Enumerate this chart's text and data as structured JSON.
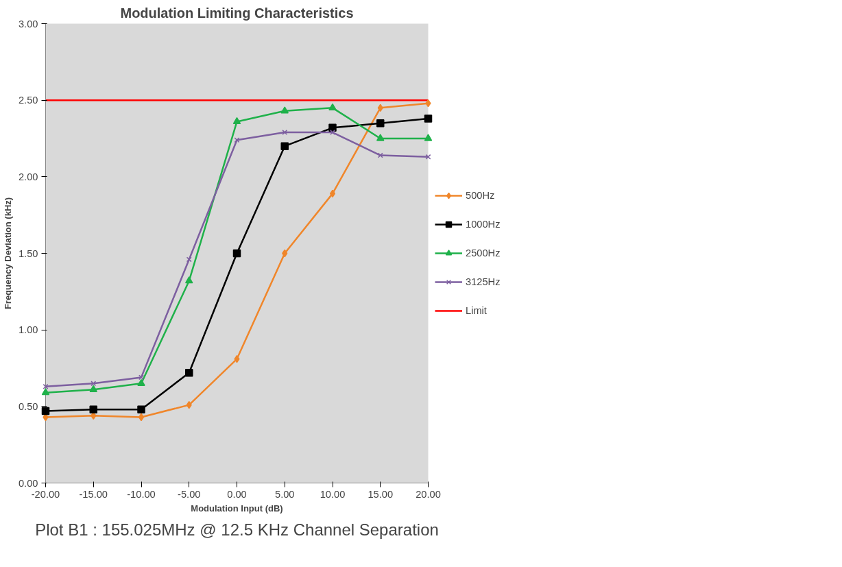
{
  "chart_data": {
    "type": "line",
    "title": "Modulation Limiting Characteristics",
    "xlabel": "Modulation Input (dB)",
    "ylabel": "Frequency Deviation (kHz)",
    "x": [
      -20,
      -15,
      -10,
      -5,
      0,
      5,
      10,
      15,
      20
    ],
    "xlim": [
      -20,
      20
    ],
    "xticks": [
      {
        "value": -20,
        "label": "-20.00"
      },
      {
        "value": -15,
        "label": "-15.00"
      },
      {
        "value": -10,
        "label": "-10.00"
      },
      {
        "value": -5,
        "label": "-5.00"
      },
      {
        "value": 0,
        "label": "0.00"
      },
      {
        "value": 5,
        "label": "5.00"
      },
      {
        "value": 10,
        "label": "10.00"
      },
      {
        "value": 15,
        "label": "15.00"
      },
      {
        "value": 20,
        "label": "20.00"
      }
    ],
    "ylim": [
      0,
      3
    ],
    "yticks": [
      {
        "value": 0,
        "label": "0.00"
      },
      {
        "value": 0.5,
        "label": "0.50"
      },
      {
        "value": 1,
        "label": "1.00"
      },
      {
        "value": 1.5,
        "label": "1.50"
      },
      {
        "value": 2,
        "label": "2.00"
      },
      {
        "value": 2.5,
        "label": "2.50"
      },
      {
        "value": 3,
        "label": "3.00"
      }
    ],
    "grid": false,
    "legend": "right",
    "series": [
      {
        "name": "500Hz",
        "color": "#f0862a",
        "marker": "diamond",
        "values": [
          0.43,
          0.44,
          0.43,
          0.51,
          0.81,
          1.5,
          1.89,
          2.45,
          2.48
        ]
      },
      {
        "name": "1000Hz",
        "color": "#000000",
        "marker": "square",
        "values": [
          0.47,
          0.48,
          0.48,
          0.72,
          1.5,
          2.2,
          2.32,
          2.35,
          2.38
        ]
      },
      {
        "name": "2500Hz",
        "color": "#1fb14a",
        "marker": "triangle",
        "values": [
          0.59,
          0.61,
          0.65,
          1.32,
          2.36,
          2.43,
          2.45,
          2.25,
          2.25
        ]
      },
      {
        "name": "3125Hz",
        "color": "#7d5fa0",
        "marker": "cross",
        "values": [
          0.63,
          0.65,
          0.69,
          1.46,
          2.24,
          2.29,
          2.29,
          2.14,
          2.13
        ]
      },
      {
        "name": "Limit",
        "color": "#ff0000",
        "marker": "none",
        "x": [
          -20,
          20
        ],
        "values": [
          2.5,
          2.5
        ]
      }
    ],
    "annotations": [
      "Plot B1 : 155.025MHz @ 12.5 KHz Channel Separation"
    ]
  }
}
